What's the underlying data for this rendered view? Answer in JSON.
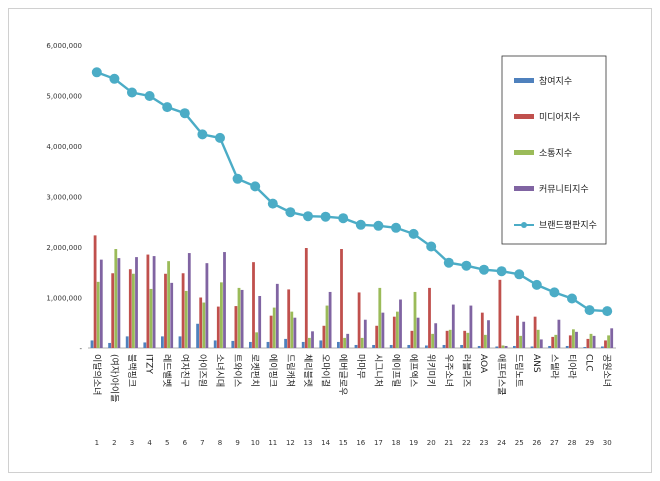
{
  "chart_data": {
    "type": "bar",
    "title": "",
    "xlabel": "",
    "ylabel": "",
    "ylim": [
      0,
      6000000
    ],
    "yticks": [
      0,
      1000000,
      2000000,
      3000000,
      4000000,
      5000000,
      6000000
    ],
    "ytick_labels": [
      "-",
      "1,000,000",
      "2,000,000",
      "3,000,000",
      "4,000,000",
      "5,000,000",
      "6,000,000"
    ],
    "categories": [
      "이달의소녀",
      "(여자)아이들",
      "블랙핑크",
      "ITZY",
      "레드벨벳",
      "여자친구",
      "아이즈원",
      "소녀시대",
      "트와이스",
      "로켓펀치",
      "에이핑크",
      "드림캐쳐",
      "체리블렛",
      "오마이걸",
      "에버글로우",
      "마마무",
      "시그니처",
      "에이프릴",
      "에프엑스",
      "위키미키",
      "우주소녀",
      "러블리즈",
      "AOA",
      "애프터스쿨",
      "드림노트",
      "ANS",
      "스텔라",
      "티아라",
      "CLC",
      "공원소녀"
    ],
    "rank_numbers": [
      "1",
      "2",
      "3",
      "4",
      "5",
      "6",
      "7",
      "8",
      "9",
      "10",
      "11",
      "12",
      "13",
      "14",
      "15",
      "16",
      "17",
      "18",
      "19",
      "20",
      "21",
      "22",
      "23",
      "24",
      "25",
      "26",
      "27",
      "28",
      "29",
      "30"
    ],
    "grid": false,
    "legend_position": "top-right",
    "series": [
      {
        "name": "참여지수",
        "type": "bar",
        "color": "#4f81bd",
        "values": [
          150000,
          100000,
          230000,
          110000,
          230000,
          230000,
          480000,
          150000,
          140000,
          120000,
          120000,
          180000,
          120000,
          150000,
          120000,
          60000,
          60000,
          60000,
          60000,
          50000,
          60000,
          60000,
          40000,
          30000,
          40000,
          30000,
          40000,
          40000,
          20000,
          30000
        ]
      },
      {
        "name": "미디어지수",
        "type": "bar",
        "color": "#c0504d",
        "values": [
          2230000,
          1480000,
          1560000,
          1850000,
          1470000,
          1480000,
          1000000,
          820000,
          830000,
          1700000,
          640000,
          1160000,
          1980000,
          440000,
          1960000,
          1100000,
          440000,
          620000,
          340000,
          1190000,
          340000,
          340000,
          700000,
          1350000,
          640000,
          620000,
          220000,
          250000,
          180000,
          150000
        ]
      },
      {
        "name": "소통지수",
        "type": "bar",
        "color": "#9bbb59",
        "values": [
          1310000,
          1960000,
          1470000,
          1170000,
          1720000,
          1130000,
          900000,
          1300000,
          1190000,
          310000,
          800000,
          720000,
          200000,
          840000,
          200000,
          200000,
          1190000,
          720000,
          1110000,
          280000,
          360000,
          300000,
          260000,
          50000,
          240000,
          360000,
          260000,
          370000,
          280000,
          250000
        ]
      },
      {
        "name": "커뮤니티지수",
        "type": "bar",
        "color": "#8064a2",
        "values": [
          1750000,
          1780000,
          1800000,
          1820000,
          1290000,
          1880000,
          1680000,
          1900000,
          1150000,
          1030000,
          1270000,
          600000,
          330000,
          1110000,
          280000,
          560000,
          700000,
          960000,
          600000,
          490000,
          860000,
          840000,
          550000,
          40000,
          520000,
          170000,
          560000,
          320000,
          240000,
          390000
        ]
      },
      {
        "name": "브랜드평판지수",
        "type": "line",
        "color": "#4bacc6",
        "values": [
          5460000,
          5330000,
          5060000,
          4990000,
          4770000,
          4650000,
          4230000,
          4160000,
          3350000,
          3200000,
          2860000,
          2690000,
          2610000,
          2600000,
          2570000,
          2440000,
          2420000,
          2380000,
          2260000,
          2010000,
          1690000,
          1630000,
          1550000,
          1520000,
          1460000,
          1250000,
          1100000,
          980000,
          750000,
          730000
        ]
      }
    ]
  }
}
